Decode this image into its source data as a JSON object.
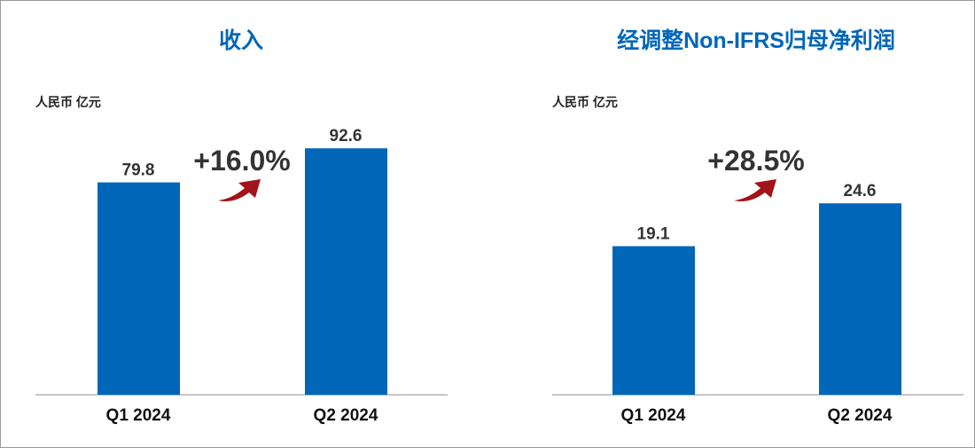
{
  "style": {
    "bar_color": "#0066B8",
    "title_color": "#0066B8",
    "arrow_color": "#A3131A",
    "axis_color": "#8c8c8c"
  },
  "chart_data": [
    {
      "type": "bar",
      "title": "收入",
      "unit": "人民币 亿元",
      "categories": [
        "Q1 2024",
        "Q2 2024"
      ],
      "values": [
        79.8,
        92.6
      ],
      "value_labels": [
        "79.8",
        "92.6"
      ],
      "growth": "+16.0%",
      "ylim": [
        0,
        100
      ],
      "grid": false
    },
    {
      "type": "bar",
      "title": "经调整Non-IFRS归母净利润",
      "unit": "人民币 亿元",
      "categories": [
        "Q1 2024",
        "Q2 2024"
      ],
      "values": [
        19.1,
        24.6
      ],
      "value_labels": [
        "19.1",
        "24.6"
      ],
      "growth": "+28.5%",
      "ylim": [
        0,
        34.2
      ],
      "grid": false
    }
  ]
}
